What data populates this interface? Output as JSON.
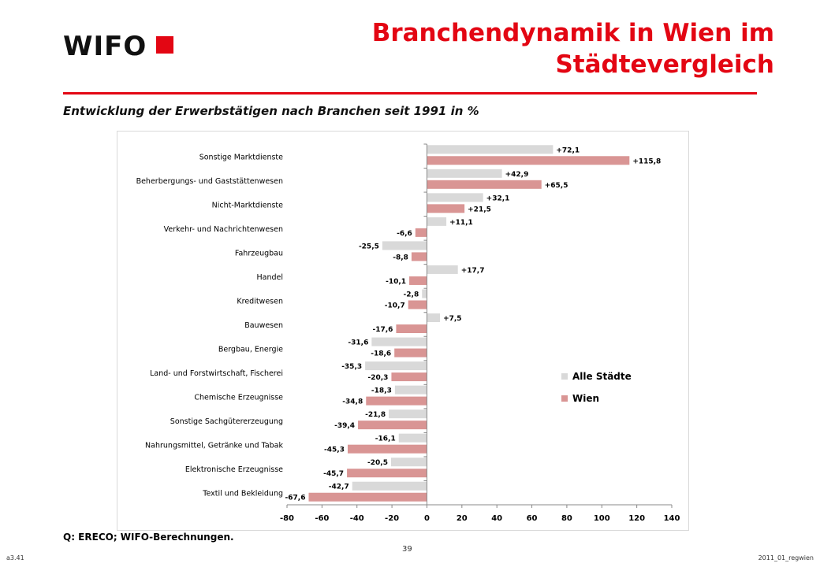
{
  "header": {
    "logo_text": "WIFO",
    "title_line1": "Branchendynamik in Wien im",
    "title_line2": "Städtevergleich",
    "subtitle": "Entwicklung der Erwerbstätigen nach Branchen seit 1991 in %"
  },
  "footer": {
    "source": "Q: ERECO; WIFO-Berechnungen.",
    "page_number": "39",
    "code_left": "a3.41",
    "code_right": "2011_01_regwien"
  },
  "chart_data": {
    "type": "bar",
    "orientation": "horizontal",
    "categories": [
      "Sonstige Marktdienste",
      "Beherbergungs- und Gaststättenwesen",
      "Nicht-Marktdienste",
      "Verkehr- und Nachrichtenwesen",
      "Fahrzeugbau",
      "Handel",
      "Kreditwesen",
      "Bauwesen",
      "Bergbau, Energie",
      "Land- und Forstwirtschaft, Fischerei",
      "Chemische Erzeugnisse",
      "Sonstige Sachgütererzeugung",
      "Nahrungsmittel, Getränke und Tabak",
      "Elektronische Erzeugnisse",
      "Textil und Bekleidung"
    ],
    "series": [
      {
        "name": "Alle Städte",
        "color": "#d9d9d9",
        "values": [
          72.1,
          42.9,
          32.1,
          11.1,
          -25.5,
          17.7,
          -2.8,
          7.5,
          -31.6,
          -35.3,
          -18.3,
          -21.8,
          -16.1,
          -20.5,
          -42.7
        ],
        "labels": [
          "+72,1",
          "+42,9",
          "+32,1",
          "+11,1",
          "-25,5",
          "+17,7",
          "-2,8",
          "+7,5",
          "-31,6",
          "-35,3",
          "-18,3",
          "-21,8",
          "-16,1",
          "-20,5",
          "-42,7"
        ]
      },
      {
        "name": "Wien",
        "color": "#d99594",
        "values": [
          115.8,
          65.5,
          21.5,
          -6.6,
          -8.8,
          -10.1,
          -10.7,
          -17.6,
          -18.6,
          -20.3,
          -34.8,
          -39.4,
          -45.3,
          -45.7,
          -67.6
        ],
        "labels": [
          "+115,8",
          "+65,5",
          "+21,5",
          "-6,6",
          "-8,8",
          "-10,1",
          "-10,7",
          "-17,6",
          "-18,6",
          "-20,3",
          "-34,8",
          "-39,4",
          "-45,3",
          "-45,7",
          "-67,6"
        ]
      }
    ],
    "xlim": [
      -80,
      140
    ],
    "xticks": [
      -80,
      -60,
      -40,
      -20,
      0,
      20,
      40,
      60,
      80,
      100,
      120,
      140
    ],
    "grid": false,
    "legend_position": "bottom-right"
  }
}
